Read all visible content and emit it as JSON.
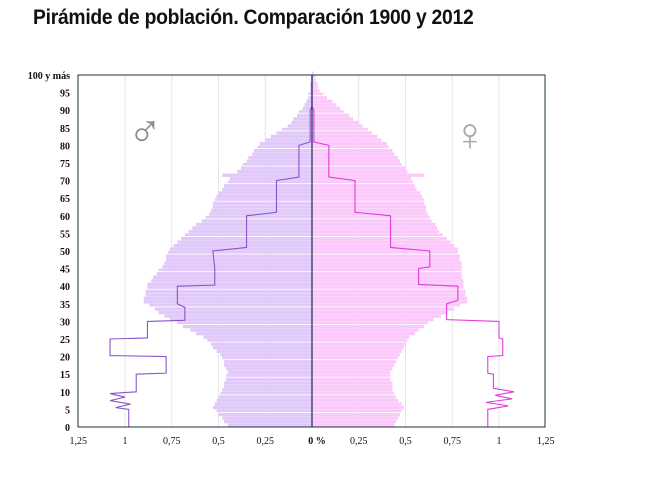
{
  "chart_data": {
    "type": "population-pyramid",
    "title": "Pirámide de población. Comparación 1900 y 2012",
    "x_tick_labels_left": [
      "1,25",
      "1",
      "0,75",
      "0,5",
      "0,25"
    ],
    "x_center_label": "0 %",
    "x_tick_labels_right": [
      "0,25",
      "0,5",
      "0,75",
      "1",
      "1,25"
    ],
    "x_ticks": [
      0.25,
      0.5,
      0.75,
      1,
      1.25
    ],
    "xlim": [
      -1.25,
      1.25
    ],
    "y_tick_labels": [
      "0",
      "5",
      "10",
      "15",
      "20",
      "25",
      "30",
      "35",
      "40",
      "45",
      "50",
      "55",
      "60",
      "65",
      "70",
      "75",
      "80",
      "85",
      "90",
      "95",
      "100 y más"
    ],
    "ylim": [
      0,
      100
    ],
    "grid": "vertical",
    "symbols": {
      "male": "♂",
      "female": "♀"
    },
    "colors": {
      "male_2012": "#e1c9fa",
      "female_2012": "#fbcafb",
      "male_1900": "#8a55c8",
      "female_1900": "#e03cd8",
      "symbol": "#8c8c8c"
    },
    "series": [
      {
        "key": "male_2012",
        "kind": "bars",
        "side": "left",
        "values": [
          0.45,
          0.47,
          0.48,
          0.5,
          0.51,
          0.53,
          0.52,
          0.51,
          0.5,
          0.49,
          0.48,
          0.47,
          0.47,
          0.46,
          0.46,
          0.45,
          0.46,
          0.47,
          0.47,
          0.48,
          0.49,
          0.51,
          0.53,
          0.54,
          0.56,
          0.58,
          0.62,
          0.65,
          0.69,
          0.72,
          0.76,
          0.79,
          0.82,
          0.84,
          0.87,
          0.9,
          0.9,
          0.89,
          0.89,
          0.88,
          0.88,
          0.86,
          0.85,
          0.83,
          0.82,
          0.8,
          0.79,
          0.78,
          0.78,
          0.77,
          0.76,
          0.74,
          0.72,
          0.7,
          0.68,
          0.66,
          0.64,
          0.62,
          0.59,
          0.57,
          0.55,
          0.54,
          0.53,
          0.53,
          0.52,
          0.51,
          0.5,
          0.48,
          0.47,
          0.45,
          0.44,
          0.48,
          0.4,
          0.38,
          0.37,
          0.35,
          0.34,
          0.32,
          0.31,
          0.29,
          0.28,
          0.25,
          0.22,
          0.19,
          0.16,
          0.13,
          0.11,
          0.1,
          0.08,
          0.07,
          0.05,
          0.04,
          0.03,
          0.02,
          0.02,
          0.01,
          0.01,
          0.01,
          0.0,
          0.0,
          0.0
        ]
      },
      {
        "key": "female_2012",
        "kind": "bars",
        "side": "right",
        "values": [
          0.44,
          0.45,
          0.46,
          0.47,
          0.48,
          0.49,
          0.48,
          0.46,
          0.45,
          0.44,
          0.43,
          0.43,
          0.43,
          0.42,
          0.42,
          0.42,
          0.43,
          0.44,
          0.45,
          0.46,
          0.47,
          0.48,
          0.49,
          0.5,
          0.51,
          0.52,
          0.55,
          0.57,
          0.6,
          0.62,
          0.65,
          0.69,
          0.72,
          0.76,
          0.79,
          0.83,
          0.83,
          0.82,
          0.82,
          0.81,
          0.81,
          0.81,
          0.8,
          0.8,
          0.8,
          0.8,
          0.8,
          0.79,
          0.79,
          0.78,
          0.78,
          0.76,
          0.74,
          0.72,
          0.7,
          0.68,
          0.67,
          0.66,
          0.64,
          0.63,
          0.62,
          0.61,
          0.61,
          0.6,
          0.6,
          0.59,
          0.58,
          0.56,
          0.55,
          0.54,
          0.53,
          0.6,
          0.51,
          0.5,
          0.48,
          0.47,
          0.46,
          0.44,
          0.43,
          0.41,
          0.4,
          0.37,
          0.35,
          0.32,
          0.3,
          0.27,
          0.25,
          0.22,
          0.2,
          0.17,
          0.15,
          0.13,
          0.11,
          0.08,
          0.06,
          0.04,
          0.03,
          0.03,
          0.02,
          0.02,
          0.01
        ]
      },
      {
        "key": "male_1900",
        "kind": "line",
        "side": "left",
        "points": [
          [
            0,
            0.98
          ],
          [
            5,
            0.98
          ],
          [
            5.5,
            1.05
          ],
          [
            6.5,
            0.97
          ],
          [
            7.5,
            1.08
          ],
          [
            8.5,
            1.0
          ],
          [
            9.5,
            1.08
          ],
          [
            10,
            0.94
          ],
          [
            15,
            0.94
          ],
          [
            15.3,
            0.78
          ],
          [
            20,
            0.78
          ],
          [
            20.3,
            1.08
          ],
          [
            25,
            1.08
          ],
          [
            25.3,
            0.88
          ],
          [
            30,
            0.88
          ],
          [
            30.3,
            0.68
          ],
          [
            34,
            0.68
          ],
          [
            35,
            0.72
          ],
          [
            40,
            0.72
          ],
          [
            40.3,
            0.52
          ],
          [
            45,
            0.52
          ],
          [
            50,
            0.53
          ],
          [
            51,
            0.35
          ],
          [
            60,
            0.35
          ],
          [
            61,
            0.19
          ],
          [
            70,
            0.19
          ],
          [
            71,
            0.07
          ],
          [
            80,
            0.07
          ],
          [
            81,
            0.01
          ],
          [
            90,
            0.01
          ],
          [
            91,
            0
          ],
          [
            100,
            0
          ]
        ]
      },
      {
        "key": "female_1900",
        "kind": "line",
        "side": "right",
        "points": [
          [
            0,
            0.94
          ],
          [
            5,
            0.94
          ],
          [
            6,
            1.05
          ],
          [
            7,
            0.93
          ],
          [
            8,
            1.07
          ],
          [
            9,
            0.98
          ],
          [
            10,
            1.08
          ],
          [
            11,
            0.97
          ],
          [
            15,
            0.97
          ],
          [
            15.3,
            0.94
          ],
          [
            20,
            0.94
          ],
          [
            20.3,
            1.02
          ],
          [
            25,
            1.02
          ],
          [
            25.3,
            1.0
          ],
          [
            30,
            1.0
          ],
          [
            30.5,
            0.72
          ],
          [
            35,
            0.72
          ],
          [
            36,
            0.78
          ],
          [
            40,
            0.78
          ],
          [
            40.5,
            0.57
          ],
          [
            45,
            0.57
          ],
          [
            45.5,
            0.63
          ],
          [
            50,
            0.63
          ],
          [
            51,
            0.42
          ],
          [
            60,
            0.42
          ],
          [
            61,
            0.23
          ],
          [
            70,
            0.23
          ],
          [
            71,
            0.09
          ],
          [
            80,
            0.09
          ],
          [
            81,
            0.01
          ],
          [
            90,
            0.01
          ],
          [
            91,
            0
          ],
          [
            100,
            0
          ]
        ]
      }
    ]
  }
}
